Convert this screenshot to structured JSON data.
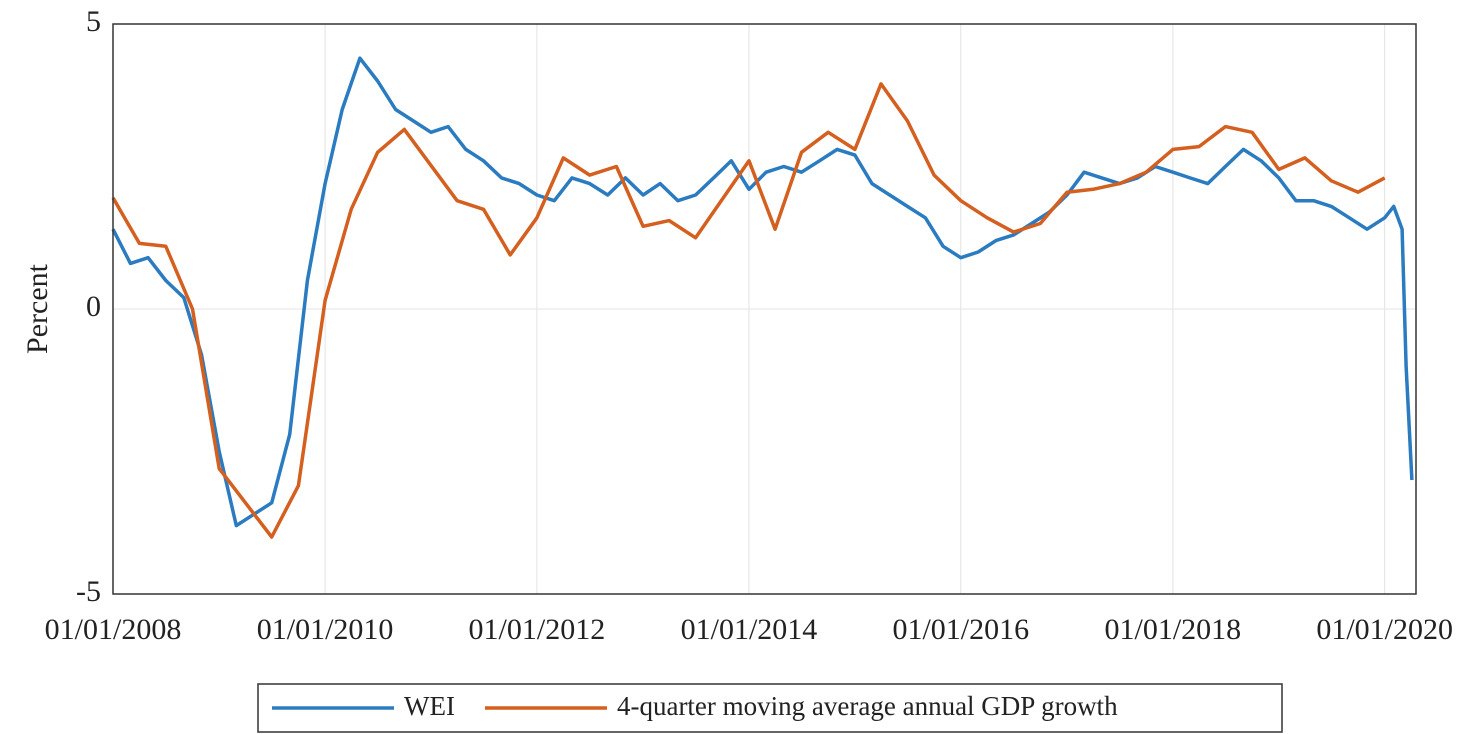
{
  "chart_data": {
    "type": "line",
    "ylabel": "Percent",
    "xlim": [
      "01/01/2008",
      "04/18/2020"
    ],
    "xticks": [
      "01/01/2008",
      "01/01/2010",
      "01/01/2012",
      "01/01/2014",
      "01/01/2016",
      "01/01/2018",
      "01/01/2020"
    ],
    "ylim": [
      -5,
      5
    ],
    "yticks": [
      -5,
      0,
      5
    ],
    "grid": true,
    "legend": "bottom",
    "series": [
      {
        "name": "WEI",
        "color": "#2a7bc0",
        "x": [
          "01/01/2008",
          "03/01/2008",
          "05/01/2008",
          "07/01/2008",
          "09/01/2008",
          "11/01/2008",
          "01/01/2009",
          "03/01/2009",
          "05/01/2009",
          "07/01/2009",
          "09/01/2009",
          "11/01/2009",
          "01/01/2010",
          "03/01/2010",
          "05/01/2010",
          "07/01/2010",
          "09/01/2010",
          "11/01/2010",
          "01/01/2011",
          "03/01/2011",
          "05/01/2011",
          "07/01/2011",
          "09/01/2011",
          "11/01/2011",
          "01/01/2012",
          "03/01/2012",
          "05/01/2012",
          "07/01/2012",
          "09/01/2012",
          "11/01/2012",
          "01/01/2013",
          "03/01/2013",
          "05/01/2013",
          "07/01/2013",
          "09/01/2013",
          "11/01/2013",
          "01/01/2014",
          "03/01/2014",
          "05/01/2014",
          "07/01/2014",
          "09/01/2014",
          "11/01/2014",
          "01/01/2015",
          "03/01/2015",
          "05/01/2015",
          "07/01/2015",
          "09/01/2015",
          "11/01/2015",
          "01/01/2016",
          "03/01/2016",
          "05/01/2016",
          "07/01/2016",
          "09/01/2016",
          "11/01/2016",
          "01/01/2017",
          "03/01/2017",
          "05/01/2017",
          "07/01/2017",
          "09/01/2017",
          "11/01/2017",
          "01/01/2018",
          "03/01/2018",
          "05/01/2018",
          "07/01/2018",
          "09/01/2018",
          "11/01/2018",
          "01/01/2019",
          "03/01/2019",
          "05/01/2019",
          "07/01/2019",
          "09/01/2019",
          "11/01/2019",
          "01/01/2020",
          "02/01/2020",
          "03/01/2020",
          "03/15/2020",
          "04/04/2020"
        ],
        "values": [
          1.4,
          0.8,
          0.9,
          0.5,
          0.2,
          -0.8,
          -2.5,
          -3.8,
          -3.6,
          -3.4,
          -2.2,
          0.5,
          2.2,
          3.5,
          4.4,
          4.0,
          3.5,
          3.3,
          3.1,
          3.2,
          2.8,
          2.6,
          2.3,
          2.2,
          2.0,
          1.9,
          2.3,
          2.2,
          2.0,
          2.3,
          2.0,
          2.2,
          1.9,
          2.0,
          2.3,
          2.6,
          2.1,
          2.4,
          2.5,
          2.4,
          2.6,
          2.8,
          2.7,
          2.2,
          2.0,
          1.8,
          1.6,
          1.1,
          0.9,
          1.0,
          1.2,
          1.3,
          1.5,
          1.7,
          2.0,
          2.4,
          2.3,
          2.2,
          2.3,
          2.5,
          2.4,
          2.3,
          2.2,
          2.5,
          2.8,
          2.6,
          2.3,
          1.9,
          1.9,
          1.8,
          1.6,
          1.4,
          1.6,
          1.8,
          1.4,
          -1.0,
          -3.0
        ]
      },
      {
        "name": "4-quarter moving average annual GDP growth",
        "color": "#d45f1e",
        "x": [
          "01/01/2008",
          "04/01/2008",
          "07/01/2008",
          "10/01/2008",
          "01/01/2009",
          "07/01/2009",
          "10/01/2009",
          "01/01/2010",
          "04/01/2010",
          "07/01/2010",
          "10/01/2010",
          "04/01/2011",
          "07/01/2011",
          "10/01/2011",
          "01/01/2012",
          "04/01/2012",
          "07/01/2012",
          "10/01/2012",
          "01/01/2013",
          "04/01/2013",
          "07/01/2013",
          "01/01/2014",
          "04/01/2014",
          "07/01/2014",
          "10/01/2014",
          "01/01/2015",
          "04/01/2015",
          "07/01/2015",
          "10/01/2015",
          "01/01/2016",
          "04/01/2016",
          "07/01/2016",
          "10/01/2016",
          "01/01/2017",
          "04/01/2017",
          "07/01/2017",
          "10/01/2017",
          "01/01/2018",
          "04/01/2018",
          "07/01/2018",
          "10/01/2018",
          "01/01/2019",
          "04/01/2019",
          "07/01/2019",
          "10/01/2019",
          "01/01/2020"
        ],
        "values": [
          1.95,
          1.15,
          1.1,
          0.0,
          -2.8,
          -4.0,
          -3.1,
          0.15,
          1.75,
          2.75,
          3.15,
          1.9,
          1.75,
          0.95,
          1.6,
          2.65,
          2.35,
          2.5,
          1.45,
          1.55,
          1.25,
          2.6,
          1.4,
          2.75,
          3.1,
          2.8,
          3.95,
          3.3,
          2.35,
          1.9,
          1.6,
          1.35,
          1.5,
          2.05,
          2.1,
          2.2,
          2.4,
          2.8,
          2.85,
          3.2,
          3.1,
          2.45,
          2.65,
          2.25,
          2.05,
          2.3
        ]
      }
    ]
  }
}
